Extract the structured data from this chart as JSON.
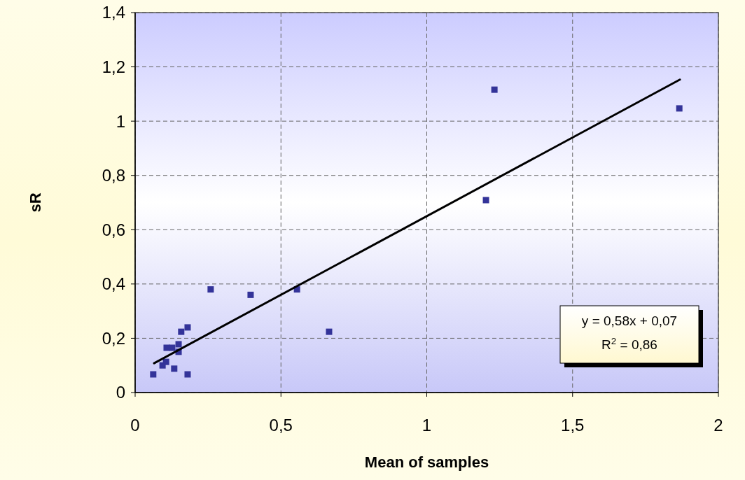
{
  "chart_data": {
    "type": "scatter",
    "xlabel": "Mean of samples",
    "ylabel": "sR",
    "xlim": [
      0,
      2
    ],
    "ylim": [
      0,
      1.4
    ],
    "xticks": [
      0,
      {
        "value": 0.5,
        "label": "0,5"
      },
      1,
      {
        "value": 1.5,
        "label": "1,5"
      },
      2
    ],
    "yticks": [
      0,
      {
        "value": 0.2,
        "label": "0,2"
      },
      {
        "value": 0.4,
        "label": "0,4"
      },
      {
        "value": 0.6,
        "label": "0,6"
      },
      {
        "value": 0.8,
        "label": "0,8"
      },
      1,
      {
        "value": 1.2,
        "label": "1,2"
      },
      {
        "value": 1.4,
        "label": "1,4"
      }
    ],
    "grid": true,
    "series": [
      {
        "marker": "square",
        "color": "#333399",
        "x": [
          0.062,
          0.094,
          0.106,
          0.134,
          0.18,
          0.108,
          0.127,
          0.149,
          0.149,
          0.158,
          0.18,
          0.259,
          0.396,
          0.555,
          0.665,
          1.232,
          1.866,
          1.203
        ],
        "values": [
          0.067,
          0.1,
          0.113,
          0.088,
          0.067,
          0.165,
          0.165,
          0.178,
          0.15,
          0.224,
          0.24,
          0.38,
          0.36,
          0.38,
          0.224,
          1.116,
          1.047,
          0.709
        ]
      },
      {
        "type": "line",
        "color": "#000000",
        "line_style": "solid",
        "x": [
          0.065,
          1.868
        ],
        "values": [
          0.108,
          1.153
        ]
      }
    ],
    "annotations": [
      "y = 0,58x + 0,07",
      "R$^{2}$ = 0,86"
    ]
  }
}
